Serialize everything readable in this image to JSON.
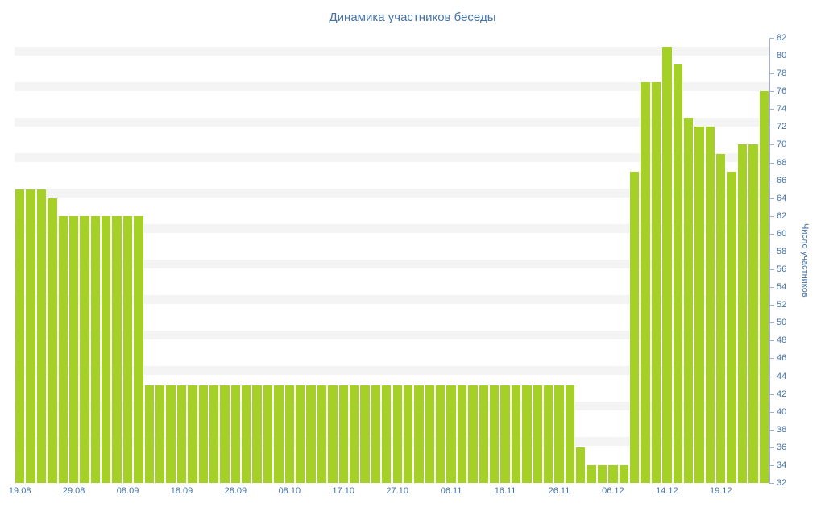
{
  "chart_data": {
    "type": "bar",
    "title": "Динамика участников беседы",
    "xlabel": "",
    "ylabel": "Число участников",
    "ylim": [
      32,
      82
    ],
    "y_tick_step": 2,
    "y_ticks": [
      32,
      34,
      36,
      38,
      40,
      42,
      44,
      46,
      48,
      50,
      52,
      54,
      56,
      58,
      60,
      62,
      64,
      66,
      68,
      70,
      72,
      74,
      76,
      78,
      80,
      82
    ],
    "x_tick_labels": [
      "19.08",
      "29.08",
      "08.09",
      "18.09",
      "28.09",
      "08.10",
      "17.10",
      "27.10",
      "06.11",
      "16.11",
      "26.11",
      "06.12",
      "14.12",
      "19.12"
    ],
    "x_tick_every": 5,
    "values": [
      65,
      65,
      65,
      64,
      62,
      62,
      62,
      62,
      62,
      62,
      62,
      62,
      43,
      43,
      43,
      43,
      43,
      43,
      43,
      43,
      43,
      43,
      43,
      43,
      43,
      43,
      43,
      43,
      43,
      43,
      43,
      43,
      43,
      43,
      43,
      43,
      43,
      43,
      43,
      43,
      43,
      43,
      43,
      43,
      43,
      43,
      43,
      43,
      43,
      43,
      43,
      43,
      36,
      34,
      34,
      34,
      34,
      67,
      77,
      77,
      81,
      79,
      73,
      72,
      72,
      69,
      67,
      70,
      70,
      76
    ],
    "legend": "none",
    "grid": "alternating horizontal bands",
    "colors": {
      "bar": "#a5d028",
      "text": "#4572a7",
      "band": "#f4f4f4",
      "axis_line": "#9db2cc",
      "background": "#ffffff"
    }
  }
}
